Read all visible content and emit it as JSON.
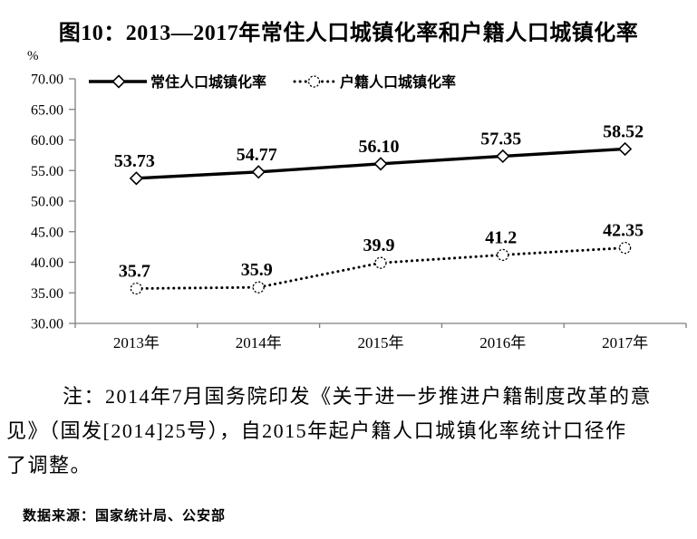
{
  "figure": {
    "title": "图10：2013—2017年常住人口城镇化率和户籍人口城镇化率",
    "unit_label": "%",
    "note_lines": [
      "注：2014年7月国务院印发《关于进一步推进户籍制度改革的意",
      "见》（国发[2014]25号），自2015年起户籍人口城镇化率统计口径作",
      "了调整。"
    ],
    "source": "数据来源：国家统计局、公安部"
  },
  "chart_data": {
    "type": "line",
    "title": "图10：2013—2017年常住人口城镇化率和户籍人口城镇化率",
    "xlabel": "",
    "ylabel": "%",
    "categories": [
      "2013年",
      "2014年",
      "2015年",
      "2016年",
      "2017年"
    ],
    "series": [
      {
        "name": "常住人口城镇化率",
        "values": [
          53.73,
          54.77,
          56.1,
          57.35,
          58.52
        ],
        "point_labels": [
          "53.73",
          "54.77",
          "56.10",
          "57.35",
          "58.52"
        ],
        "line_style": "solid",
        "marker": "diamond",
        "color": "#000000"
      },
      {
        "name": "户籍人口城镇化率",
        "values": [
          35.7,
          35.9,
          39.9,
          41.2,
          42.35
        ],
        "point_labels": [
          "35.7",
          "35.9",
          "39.9",
          "41.2",
          "42.35"
        ],
        "line_style": "dotted",
        "marker": "circle",
        "color": "#000000"
      }
    ],
    "ylim": [
      30,
      70
    ],
    "ytick_step": 5,
    "ytick_labels": [
      "30.00",
      "35.00",
      "40.00",
      "45.00",
      "50.00",
      "55.00",
      "60.00",
      "65.00",
      "70.00"
    ],
    "grid": false,
    "legend_position": "top-inside",
    "axis_color": "#7f7f7f",
    "ink_color": "#000000"
  }
}
